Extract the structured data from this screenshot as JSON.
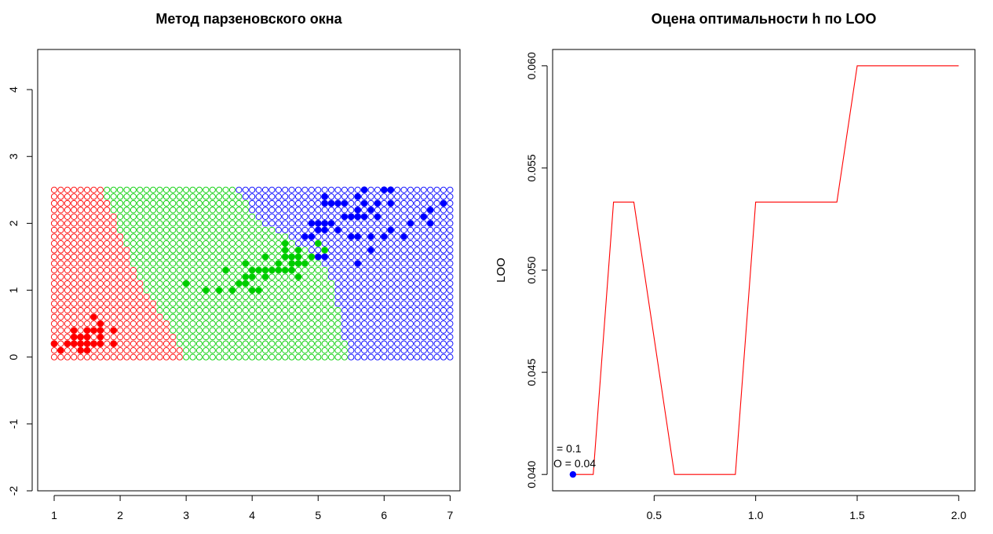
{
  "colors": {
    "red": "#ff0000",
    "green": "#00cd00",
    "blue": "#0000ff",
    "line": "#ff0000",
    "axis": "#000000"
  },
  "chart_data": [
    {
      "type": "scatter",
      "title": "Метод парзеновского окна",
      "xlabel": "",
      "ylabel": "",
      "xlim": [
        0.75,
        7.15
      ],
      "ylim": [
        -2.0,
        4.6
      ],
      "xticks": [
        1,
        2,
        3,
        4,
        5,
        6,
        7
      ],
      "yticks": [
        -2,
        -1,
        0,
        1,
        2,
        3,
        4
      ],
      "grid": false,
      "classification_map": {
        "x_range": [
          1.0,
          7.0
        ],
        "y_range": [
          0.0,
          2.5
        ],
        "step": 0.1,
        "regions": [
          {
            "class": "red",
            "boundary_x_at_y": [
              [
                0.0,
                2.95
              ],
              [
                0.5,
                2.75
              ],
              [
                1.0,
                2.35
              ],
              [
                1.5,
                2.15
              ],
              [
                2.0,
                1.95
              ],
              [
                2.5,
                1.75
              ]
            ]
          },
          {
            "class": "green",
            "boundary_x_at_y": [
              [
                0.0,
                5.45
              ],
              [
                0.5,
                5.35
              ],
              [
                1.0,
                5.25
              ],
              [
                1.5,
                5.05
              ],
              [
                2.0,
                4.15
              ],
              [
                2.5,
                3.75
              ]
            ]
          },
          {
            "class": "blue",
            "boundary_x_at_y": []
          }
        ]
      },
      "series": [
        {
          "color": "red",
          "points": [
            [
              1.0,
              0.2
            ],
            [
              1.1,
              0.1
            ],
            [
              1.2,
              0.2
            ],
            [
              1.3,
              0.2
            ],
            [
              1.3,
              0.3
            ],
            [
              1.3,
              0.4
            ],
            [
              1.4,
              0.1
            ],
            [
              1.4,
              0.2
            ],
            [
              1.4,
              0.3
            ],
            [
              1.5,
              0.1
            ],
            [
              1.5,
              0.2
            ],
            [
              1.5,
              0.3
            ],
            [
              1.5,
              0.4
            ],
            [
              1.6,
              0.2
            ],
            [
              1.6,
              0.4
            ],
            [
              1.6,
              0.6
            ],
            [
              1.7,
              0.2
            ],
            [
              1.7,
              0.3
            ],
            [
              1.7,
              0.4
            ],
            [
              1.7,
              0.5
            ],
            [
              1.9,
              0.2
            ],
            [
              1.9,
              0.4
            ]
          ]
        },
        {
          "color": "green",
          "points": [
            [
              3.0,
              1.1
            ],
            [
              3.3,
              1.0
            ],
            [
              3.5,
              1.0
            ],
            [
              3.6,
              1.3
            ],
            [
              3.7,
              1.0
            ],
            [
              3.8,
              1.1
            ],
            [
              3.9,
              1.1
            ],
            [
              3.9,
              1.2
            ],
            [
              3.9,
              1.4
            ],
            [
              4.0,
              1.3
            ],
            [
              4.0,
              1.0
            ],
            [
              4.0,
              1.2
            ],
            [
              4.1,
              1.3
            ],
            [
              4.1,
              1.0
            ],
            [
              4.2,
              1.2
            ],
            [
              4.2,
              1.3
            ],
            [
              4.2,
              1.5
            ],
            [
              4.3,
              1.3
            ],
            [
              4.4,
              1.3
            ],
            [
              4.4,
              1.4
            ],
            [
              4.5,
              1.3
            ],
            [
              4.5,
              1.5
            ],
            [
              4.5,
              1.6
            ],
            [
              4.5,
              1.7
            ],
            [
              4.6,
              1.3
            ],
            [
              4.6,
              1.4
            ],
            [
              4.6,
              1.5
            ],
            [
              4.7,
              1.2
            ],
            [
              4.7,
              1.4
            ],
            [
              4.7,
              1.5
            ],
            [
              4.7,
              1.6
            ],
            [
              4.8,
              1.4
            ],
            [
              4.9,
              1.5
            ],
            [
              5.0,
              1.7
            ],
            [
              5.1,
              1.6
            ]
          ]
        },
        {
          "color": "blue",
          "points": [
            [
              4.8,
              1.8
            ],
            [
              4.9,
              1.8
            ],
            [
              4.9,
              2.0
            ],
            [
              5.0,
              1.5
            ],
            [
              5.0,
              1.9
            ],
            [
              5.0,
              2.0
            ],
            [
              5.1,
              1.5
            ],
            [
              5.1,
              1.9
            ],
            [
              5.1,
              2.0
            ],
            [
              5.1,
              2.3
            ],
            [
              5.1,
              2.4
            ],
            [
              5.2,
              2.0
            ],
            [
              5.2,
              2.3
            ],
            [
              5.3,
              1.9
            ],
            [
              5.3,
              2.3
            ],
            [
              5.4,
              2.1
            ],
            [
              5.4,
              2.3
            ],
            [
              5.5,
              1.8
            ],
            [
              5.5,
              2.1
            ],
            [
              5.6,
              1.4
            ],
            [
              5.6,
              1.8
            ],
            [
              5.6,
              2.1
            ],
            [
              5.6,
              2.2
            ],
            [
              5.6,
              2.4
            ],
            [
              5.7,
              2.1
            ],
            [
              5.7,
              2.3
            ],
            [
              5.7,
              2.5
            ],
            [
              5.8,
              1.6
            ],
            [
              5.8,
              1.8
            ],
            [
              5.8,
              2.2
            ],
            [
              5.9,
              2.1
            ],
            [
              5.9,
              2.3
            ],
            [
              6.0,
              1.8
            ],
            [
              6.0,
              2.5
            ],
            [
              6.1,
              1.9
            ],
            [
              6.1,
              2.3
            ],
            [
              6.1,
              2.5
            ],
            [
              6.3,
              1.8
            ],
            [
              6.4,
              2.0
            ],
            [
              6.6,
              2.1
            ],
            [
              6.7,
              2.0
            ],
            [
              6.7,
              2.2
            ],
            [
              6.9,
              2.3
            ]
          ]
        }
      ]
    },
    {
      "type": "line",
      "title": "Оцена оптимальности  h по LOO",
      "xlabel": "",
      "ylabel": "LOO",
      "xlim": [
        0.0,
        2.08
      ],
      "ylim": [
        0.0392,
        0.0608
      ],
      "xticks": [
        0.5,
        1.0,
        1.5,
        2.0
      ],
      "xtick_labels": [
        "0.5",
        "1.0",
        "1.5",
        "2.0"
      ],
      "yticks": [
        0.04,
        0.045,
        0.05,
        0.055,
        0.06
      ],
      "ytick_labels": [
        "0.040",
        "0.045",
        "0.050",
        "0.055",
        "0.060"
      ],
      "grid": false,
      "series": [
        {
          "color": "red",
          "x": [
            0.1,
            0.2,
            0.3,
            0.4,
            0.5,
            0.6,
            0.7,
            0.8,
            0.9,
            1.0,
            1.1,
            1.2,
            1.3,
            1.4,
            1.5,
            1.6,
            1.7,
            1.8,
            1.9,
            2.0
          ],
          "y": [
            0.04,
            0.04,
            0.05333,
            0.05333,
            0.04667,
            0.04,
            0.04,
            0.04,
            0.04,
            0.05333,
            0.05333,
            0.05333,
            0.05333,
            0.05333,
            0.06,
            0.06,
            0.06,
            0.06,
            0.06,
            0.06
          ]
        }
      ],
      "optimum": {
        "x": 0.1,
        "y": 0.04,
        "color": "blue"
      },
      "annotations": [
        "= 0.1",
        "O = 0.04"
      ]
    }
  ]
}
